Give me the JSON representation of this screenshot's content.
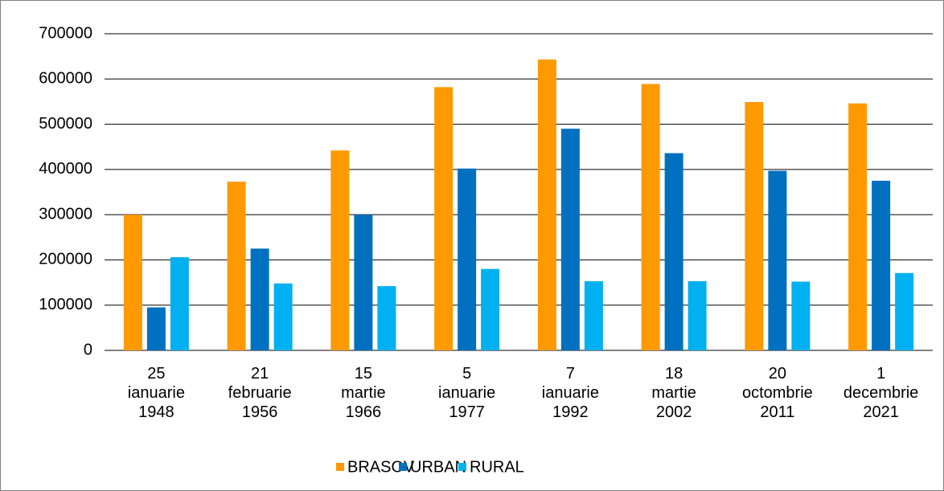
{
  "chart_data": {
    "type": "bar",
    "categories": [
      [
        "25",
        "ianuarie",
        "1948"
      ],
      [
        "21",
        "februarie",
        "1956"
      ],
      [
        "15",
        "martie",
        "1966"
      ],
      [
        "5",
        "ianuarie",
        "1977"
      ],
      [
        "7",
        "ianuarie",
        "1992"
      ],
      [
        "18",
        "martie",
        "2002"
      ],
      [
        "20",
        "octombrie",
        "2011"
      ],
      [
        "1",
        "decembrie",
        "2021"
      ]
    ],
    "series": [
      {
        "name": "BRASOV",
        "color": "#ff9900",
        "values": [
          300000,
          373000,
          442000,
          582000,
          643000,
          589000,
          549000,
          546000
        ]
      },
      {
        "name": "URBAN",
        "color": "#0070c0",
        "values": [
          95000,
          225000,
          300000,
          402000,
          490000,
          436000,
          397000,
          375000
        ]
      },
      {
        "name": "RURAL",
        "color": "#00b0f0",
        "values": [
          206000,
          148000,
          142000,
          180000,
          153000,
          153000,
          152000,
          171000
        ]
      }
    ],
    "ylim": [
      0,
      700000
    ],
    "yticks": [
      0,
      100000,
      200000,
      300000,
      400000,
      500000,
      600000,
      700000
    ],
    "grid": true,
    "legend": "bottom"
  }
}
